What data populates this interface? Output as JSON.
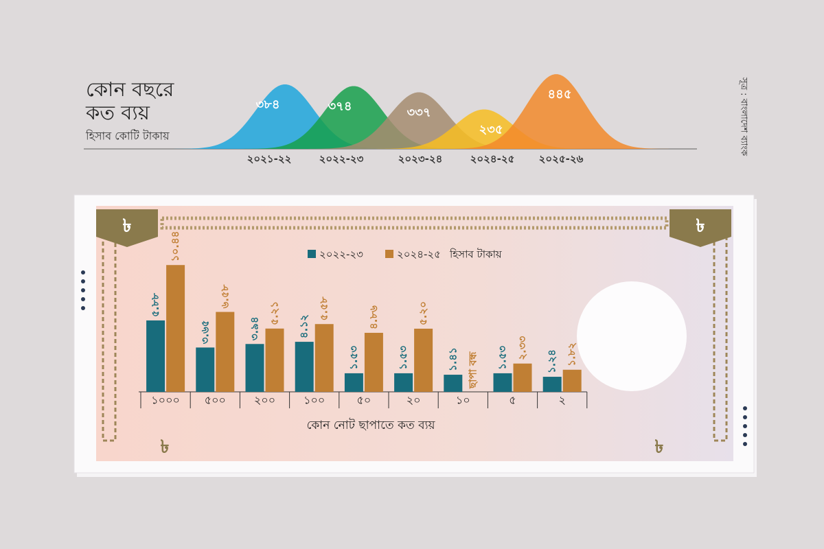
{
  "chart_data": [
    {
      "type": "ridge",
      "title": [
        "কোন বছরে",
        "কত ব্যয়"
      ],
      "subtitle": "হিসাব কোটি টাকায়",
      "source": "সূত্র : বাংলাদেশ ব্যাংক",
      "categories": [
        "২০২১-২২",
        "২০২২-২৩",
        "২০২৩-২৪",
        "২০২৪-২৫",
        "২০২৫-২৬"
      ],
      "values": [
        384,
        374,
        337,
        235,
        445
      ],
      "value_labels": [
        "৩৮৪",
        "৩৭৪",
        "৩৩৭",
        "২৩৫",
        "৪৪৫"
      ],
      "colors": [
        "#1ea6dc",
        "#17a04c",
        "#a68c70",
        "#f7bd22",
        "#f28a2b"
      ]
    },
    {
      "type": "bar",
      "title": "কোন নোট ছাপাতে কত ব্যয়",
      "note": "হিসাব টাকায়",
      "categories": [
        "১০০০",
        "৫০০",
        "২০০",
        "১০০",
        "৫০",
        "২০",
        "১০",
        "৫",
        "২"
      ],
      "series": [
        {
          "name": "২০২২-২৩",
          "color": "#186c7c",
          "values": [
            5.88,
            3.65,
            3.94,
            4.12,
            1.53,
            1.53,
            1.41,
            1.53,
            1.24
          ],
          "value_labels": [
            "৫.৮৮",
            "৩.৬৫",
            "৩.৯৪",
            "৪.১২",
            "১.৫৩",
            "১.৫৩",
            "১.৪১",
            "১.৫৩",
            "১.২৪"
          ]
        },
        {
          "name": "২০২৪-২৫",
          "color": "#c07f34",
          "values": [
            10.44,
            6.58,
            5.21,
            5.58,
            4.86,
            5.2,
            null,
            2.33,
            1.82
          ],
          "value_labels": [
            "১০.৪৪",
            "৬.৫৮",
            "৫.২১",
            "৫.৫৮",
            "৪.৮৬",
            "৫.২০",
            "ছাপা বন্ধ",
            "২.৩৩",
            "১.৮২"
          ]
        }
      ]
    }
  ]
}
